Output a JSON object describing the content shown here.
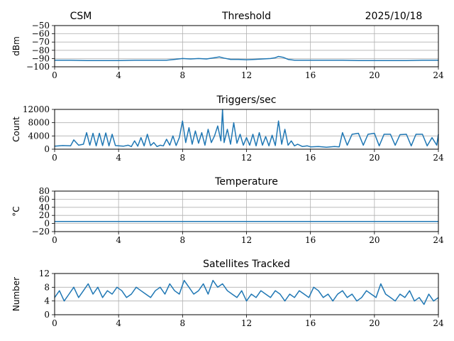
{
  "header": {
    "station": "CSM",
    "date": "2025/10/18"
  },
  "colors": {
    "series": "#1f77b4",
    "grid": "#b0b0b0",
    "axes": "#000000"
  },
  "chart_data": [
    {
      "type": "line",
      "title": "Threshold",
      "ylabel": "dBm",
      "xlabel": "",
      "xlim": [
        0,
        24
      ],
      "ylim": [
        -100,
        -50
      ],
      "xticks": [
        0,
        4,
        8,
        12,
        16,
        20,
        24
      ],
      "yticks": [
        -50,
        -60,
        -70,
        -80,
        -90,
        -100
      ],
      "ytick_labels": [
        "−50",
        "−60",
        "−70",
        "−80",
        "−90",
        "−100"
      ],
      "grid": true,
      "series": [
        {
          "name": "Threshold",
          "x": [
            0,
            1,
            2,
            3,
            4,
            5,
            6,
            7,
            7.5,
            8,
            8.5,
            9,
            9.5,
            10,
            10.3,
            10.6,
            11,
            11.5,
            12,
            12.5,
            13,
            13.5,
            13.8,
            14,
            14.3,
            14.6,
            15,
            16,
            17,
            18,
            19,
            20,
            21,
            22,
            23,
            24
          ],
          "y": [
            -92,
            -92,
            -92.5,
            -92.5,
            -92.5,
            -92,
            -92,
            -92,
            -91,
            -90,
            -90.5,
            -90,
            -90.5,
            -89,
            -88,
            -89.5,
            -91,
            -91,
            -91.5,
            -91,
            -90.5,
            -90,
            -89,
            -87.5,
            -88.5,
            -91,
            -92,
            -92,
            -92,
            -92,
            -92.5,
            -92.5,
            -92.5,
            -92.5,
            -92,
            -92
          ]
        }
      ]
    },
    {
      "type": "line",
      "title": "Triggers/sec",
      "ylabel": "Count",
      "xlabel": "",
      "xlim": [
        0,
        24
      ],
      "ylim": [
        0,
        12000
      ],
      "xticks": [
        0,
        4,
        8,
        12,
        16,
        20,
        24
      ],
      "yticks": [
        0,
        4000,
        8000,
        12000
      ],
      "ytick_labels": [
        "0",
        "4000",
        "8000",
        "12000"
      ],
      "grid": true,
      "series": [
        {
          "name": "Triggers",
          "x": [
            0,
            0.5,
            1,
            1.2,
            1.5,
            1.8,
            2,
            2.2,
            2.4,
            2.6,
            2.8,
            3,
            3.2,
            3.4,
            3.6,
            3.8,
            4,
            4.3,
            4.6,
            4.8,
            5,
            5.2,
            5.4,
            5.6,
            5.8,
            6,
            6.2,
            6.4,
            6.6,
            6.8,
            7,
            7.2,
            7.4,
            7.6,
            7.8,
            8,
            8.2,
            8.4,
            8.6,
            8.8,
            9,
            9.2,
            9.4,
            9.6,
            9.8,
            10,
            10.2,
            10.4,
            10.5,
            10.6,
            10.8,
            11,
            11.2,
            11.4,
            11.6,
            11.8,
            12,
            12.2,
            12.4,
            12.6,
            12.8,
            13,
            13.2,
            13.4,
            13.6,
            13.8,
            14,
            14.2,
            14.4,
            14.6,
            14.8,
            15,
            15.2,
            15.5,
            15.8,
            16,
            16.5,
            17,
            17.5,
            17.8,
            18,
            18.3,
            18.6,
            19,
            19.3,
            19.6,
            20,
            20.3,
            20.6,
            21,
            21.3,
            21.6,
            22,
            22.3,
            22.6,
            23,
            23.3,
            23.6,
            23.9,
            24
          ],
          "y": [
            900,
            1100,
            1000,
            2800,
            1200,
            1500,
            5000,
            1200,
            4800,
            1000,
            4800,
            1100,
            4900,
            1000,
            4500,
            1100,
            1000,
            900,
            1200,
            800,
            2500,
            900,
            3500,
            1000,
            4500,
            1100,
            2000,
            800,
            1200,
            1000,
            3000,
            1200,
            4000,
            1100,
            3500,
            8500,
            2000,
            6500,
            1500,
            5500,
            1800,
            5000,
            1200,
            6000,
            2000,
            4000,
            7000,
            2500,
            12000,
            2000,
            6000,
            1500,
            8000,
            1800,
            4500,
            1200,
            3500,
            1200,
            4500,
            1000,
            5000,
            1200,
            3800,
            1000,
            4200,
            1100,
            8500,
            1500,
            6000,
            1200,
            2500,
            1000,
            1500,
            800,
            1000,
            700,
            800,
            600,
            800,
            700,
            5000,
            1200,
            4500,
            4800,
            1200,
            4500,
            4800,
            1000,
            4500,
            4500,
            1200,
            4400,
            4500,
            1000,
            4500,
            4500,
            1000,
            3500,
            1200,
            4500
          ]
        }
      ]
    },
    {
      "type": "line",
      "title": "Temperature",
      "ylabel": "°C",
      "xlabel": "",
      "xlim": [
        0,
        24
      ],
      "ylim": [
        -20,
        80
      ],
      "xticks": [
        0,
        4,
        8,
        12,
        16,
        20,
        24
      ],
      "yticks": [
        -20,
        0,
        20,
        40,
        60,
        80
      ],
      "ytick_labels": [
        "−20",
        "0",
        "20",
        "40",
        "60",
        "80"
      ],
      "grid": true,
      "series": [
        {
          "name": "Temperature",
          "x": [
            0,
            24
          ],
          "y": [
            5,
            5
          ]
        }
      ]
    },
    {
      "type": "line",
      "title": "Satellites Tracked",
      "ylabel": "Number",
      "xlabel": "",
      "xlim": [
        0,
        24
      ],
      "ylim": [
        0,
        12
      ],
      "xticks": [
        0,
        4,
        8,
        12,
        16,
        20,
        24
      ],
      "yticks": [
        0,
        4,
        8,
        12
      ],
      "ytick_labels": [
        "0",
        "4",
        "8",
        "12"
      ],
      "grid": true,
      "series": [
        {
          "name": "Satellites",
          "x": [
            0,
            0.3,
            0.6,
            0.9,
            1.2,
            1.5,
            1.8,
            2.1,
            2.4,
            2.7,
            3,
            3.3,
            3.6,
            3.9,
            4.2,
            4.5,
            4.8,
            5.1,
            5.4,
            5.7,
            6,
            6.3,
            6.6,
            6.9,
            7.2,
            7.5,
            7.8,
            8.1,
            8.4,
            8.7,
            9,
            9.3,
            9.6,
            9.9,
            10.2,
            10.5,
            10.8,
            11.1,
            11.4,
            11.7,
            12,
            12.3,
            12.6,
            12.9,
            13.2,
            13.5,
            13.8,
            14.1,
            14.4,
            14.7,
            15,
            15.3,
            15.6,
            15.9,
            16.2,
            16.5,
            16.8,
            17.1,
            17.4,
            17.7,
            18,
            18.3,
            18.6,
            18.9,
            19.2,
            19.5,
            19.8,
            20.1,
            20.4,
            20.7,
            21,
            21.3,
            21.6,
            21.9,
            22.2,
            22.5,
            22.8,
            23.1,
            23.4,
            23.7,
            24
          ],
          "y": [
            5,
            7,
            4,
            6,
            8,
            5,
            7,
            9,
            6,
            8,
            5,
            7,
            6,
            8,
            7,
            5,
            6,
            8,
            7,
            6,
            5,
            7,
            8,
            6,
            9,
            7,
            6,
            10,
            8,
            6,
            7,
            9,
            6,
            10,
            8,
            9,
            7,
            6,
            5,
            7,
            4,
            6,
            5,
            7,
            6,
            5,
            7,
            6,
            4,
            6,
            5,
            7,
            6,
            5,
            8,
            7,
            5,
            6,
            4,
            6,
            7,
            5,
            6,
            4,
            5,
            7,
            6,
            5,
            9,
            6,
            5,
            4,
            6,
            5,
            7,
            4,
            5,
            3,
            6,
            4,
            5
          ]
        }
      ]
    }
  ]
}
